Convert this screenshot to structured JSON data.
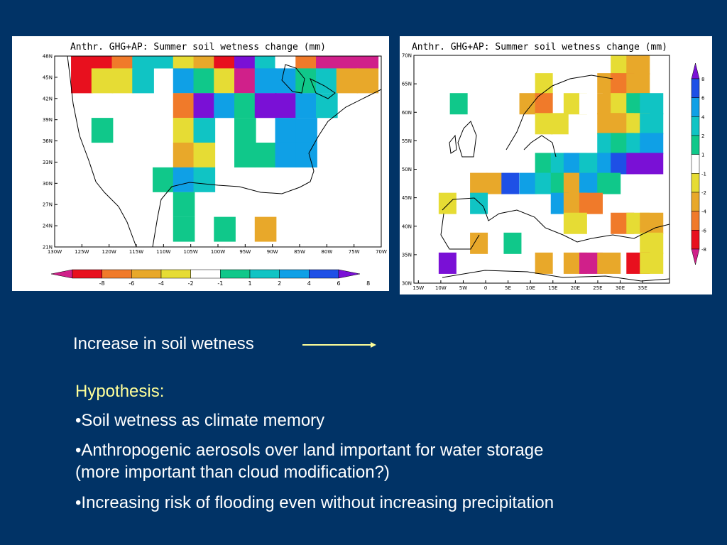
{
  "colors": {
    "background": "#013366",
    "text": "#ffffff",
    "accent": "#ffff99",
    "bins": {
      "lt-8": "#d0208a",
      "m8_m6": "#e8101e",
      "m6_m4": "#f07a2a",
      "m4_m2": "#e8a82a",
      "m2_m1": "#e6dc34",
      "m1_1": "#ffffff",
      "1_2": "#10c88a",
      "2_4": "#10c4c4",
      "4_6": "#0fa0e6",
      "6_8": "#1e50e6",
      "gt8": "#7a10d6"
    }
  },
  "maps": [
    {
      "id": "us",
      "title": "Anthr. GHG+AP: Summer soil wetness change (mm)",
      "lon_ticks": [
        "130W",
        "125W",
        "120W",
        "115W",
        "110W",
        "105W",
        "100W",
        "95W",
        "90W",
        "85W",
        "80W",
        "75W",
        "70W"
      ],
      "lat_ticks": [
        "21N",
        "24N",
        "27N",
        "30N",
        "33N",
        "36N",
        "39N",
        "42N",
        "45N",
        "48N"
      ],
      "lon_range": [
        -130,
        -70
      ],
      "lat_range": [
        21,
        48
      ],
      "colorbar": {
        "orientation": "horizontal",
        "labels": [
          "-8",
          "-6",
          "-4",
          "-2",
          "-1",
          "1",
          "2",
          "4",
          "6",
          "8"
        ]
      },
      "cells": [
        {
          "lon": -125,
          "lat": 48,
          "bin": "m8_m6"
        },
        {
          "lon": -121.25,
          "lat": 48,
          "bin": "m8_m6"
        },
        {
          "lon": -117.5,
          "lat": 48,
          "bin": "m6_m4"
        },
        {
          "lon": -113.75,
          "lat": 48,
          "bin": "2_4"
        },
        {
          "lon": -110,
          "lat": 48,
          "bin": "2_4"
        },
        {
          "lon": -106.25,
          "lat": 48,
          "bin": "m2_m1"
        },
        {
          "lon": -102.5,
          "lat": 48,
          "bin": "m4_m2"
        },
        {
          "lon": -98.75,
          "lat": 48,
          "bin": "m8_m6"
        },
        {
          "lon": -95,
          "lat": 48,
          "bin": "gt8"
        },
        {
          "lon": -91.25,
          "lat": 48,
          "bin": "2_4"
        },
        {
          "lon": -87.5,
          "lat": 48,
          "bin": "m1_1"
        },
        {
          "lon": -83.75,
          "lat": 48,
          "bin": "m6_m4"
        },
        {
          "lon": -80,
          "lat": 48,
          "bin": "lt-8"
        },
        {
          "lon": -76.25,
          "lat": 48,
          "bin": "lt-8"
        },
        {
          "lon": -72.5,
          "lat": 48,
          "bin": "lt-8"
        },
        {
          "lon": -125,
          "lat": 44.5,
          "bin": "m8_m6"
        },
        {
          "lon": -121.25,
          "lat": 44.5,
          "bin": "m2_m1"
        },
        {
          "lon": -117.5,
          "lat": 44.5,
          "bin": "m2_m1"
        },
        {
          "lon": -113.75,
          "lat": 44.5,
          "bin": "2_4"
        },
        {
          "lon": -106.25,
          "lat": 44.5,
          "bin": "4_6"
        },
        {
          "lon": -102.5,
          "lat": 44.5,
          "bin": "1_2"
        },
        {
          "lon": -98.75,
          "lat": 44.5,
          "bin": "m2_m1"
        },
        {
          "lon": -95,
          "lat": 44.5,
          "bin": "lt-8"
        },
        {
          "lon": -91.25,
          "lat": 44.5,
          "bin": "4_6"
        },
        {
          "lon": -87.5,
          "lat": 44.5,
          "bin": "4_6"
        },
        {
          "lon": -83.75,
          "lat": 44.5,
          "bin": "1_2"
        },
        {
          "lon": -80,
          "lat": 44.5,
          "bin": "2_4"
        },
        {
          "lon": -76.25,
          "lat": 44.5,
          "bin": "m4_m2"
        },
        {
          "lon": -72.5,
          "lat": 44.5,
          "bin": "m4_m2"
        },
        {
          "lon": -106.25,
          "lat": 41,
          "bin": "m6_m4"
        },
        {
          "lon": -102.5,
          "lat": 41,
          "bin": "gt8"
        },
        {
          "lon": -98.75,
          "lat": 41,
          "bin": "4_6"
        },
        {
          "lon": -95,
          "lat": 41,
          "bin": "1_2"
        },
        {
          "lon": -91.25,
          "lat": 41,
          "bin": "gt8"
        },
        {
          "lon": -87.5,
          "lat": 41,
          "bin": "gt8"
        },
        {
          "lon": -83.75,
          "lat": 41,
          "bin": "4_6"
        },
        {
          "lon": -80,
          "lat": 41,
          "bin": "2_4"
        },
        {
          "lon": -121.25,
          "lat": 37.5,
          "bin": "1_2"
        },
        {
          "lon": -106.25,
          "lat": 37.5,
          "bin": "m2_m1"
        },
        {
          "lon": -102.5,
          "lat": 37.5,
          "bin": "2_4"
        },
        {
          "lon": -95,
          "lat": 37.5,
          "bin": "1_2"
        },
        {
          "lon": -87.5,
          "lat": 37.5,
          "bin": "4_6"
        },
        {
          "lon": -83.75,
          "lat": 37.5,
          "bin": "4_6"
        },
        {
          "lon": -106.25,
          "lat": 34,
          "bin": "m4_m2"
        },
        {
          "lon": -102.5,
          "lat": 34,
          "bin": "m2_m1"
        },
        {
          "lon": -95,
          "lat": 34,
          "bin": "1_2"
        },
        {
          "lon": -91.25,
          "lat": 34,
          "bin": "1_2"
        },
        {
          "lon": -87.5,
          "lat": 34,
          "bin": "4_6"
        },
        {
          "lon": -83.75,
          "lat": 34,
          "bin": "4_6"
        },
        {
          "lon": -110,
          "lat": 30.5,
          "bin": "1_2"
        },
        {
          "lon": -106.25,
          "lat": 30.5,
          "bin": "4_6"
        },
        {
          "lon": -102.5,
          "lat": 30.5,
          "bin": "2_4"
        },
        {
          "lon": -106.25,
          "lat": 27,
          "bin": "1_2"
        },
        {
          "lon": -106.25,
          "lat": 23.5,
          "bin": "1_2"
        },
        {
          "lon": -98.75,
          "lat": 23.5,
          "bin": "1_2"
        },
        {
          "lon": -91.25,
          "lat": 23.5,
          "bin": "m4_m2"
        }
      ]
    },
    {
      "id": "eu",
      "title": "Anthr. GHG+AP: Summer soil wetness change (mm)",
      "lon_ticks": [
        "15W",
        "10W",
        "5W",
        "0",
        "5E",
        "10E",
        "15E",
        "20E",
        "25E",
        "30E",
        "35E"
      ],
      "lat_ticks": [
        "30N",
        "35N",
        "40N",
        "45N",
        "50N",
        "55N",
        "60N",
        "65N",
        "70N"
      ],
      "lon_range": [
        -16,
        41
      ],
      "lat_range": [
        30,
        70
      ],
      "colorbar": {
        "orientation": "vertical",
        "labels": [
          "8",
          "6",
          "4",
          "2",
          "1",
          "-1",
          "-2",
          "-4",
          "-6",
          "-8"
        ]
      },
      "cells": [
        {
          "lon": 30.5,
          "lat": 68.5,
          "bin": "m2_m1"
        },
        {
          "lon": 34,
          "lat": 68.5,
          "bin": "m4_m2"
        },
        {
          "lon": 13,
          "lat": 65,
          "bin": "m2_m1"
        },
        {
          "lon": 27.5,
          "lat": 65,
          "bin": "m4_m2"
        },
        {
          "lon": 30.5,
          "lat": 65,
          "bin": "m6_m4"
        },
        {
          "lon": 34,
          "lat": 65,
          "bin": "m4_m2"
        },
        {
          "lon": -6,
          "lat": 61.5,
          "bin": "1_2"
        },
        {
          "lon": 9.5,
          "lat": 61.5,
          "bin": "m4_m2"
        },
        {
          "lon": 13,
          "lat": 61.5,
          "bin": "m6_m4"
        },
        {
          "lon": 20,
          "lat": 61.5,
          "bin": "m2_m1"
        },
        {
          "lon": 23.5,
          "lat": 61.5,
          "bin": "m1_1"
        },
        {
          "lon": 27.5,
          "lat": 61.5,
          "bin": "m4_m2"
        },
        {
          "lon": 30.5,
          "lat": 61.5,
          "bin": "m2_m1"
        },
        {
          "lon": 34,
          "lat": 61.5,
          "bin": "1_2"
        },
        {
          "lon": 37,
          "lat": 61.5,
          "bin": "2_4"
        },
        {
          "lon": 13,
          "lat": 58,
          "bin": "m2_m1"
        },
        {
          "lon": 16.5,
          "lat": 58,
          "bin": "m2_m1"
        },
        {
          "lon": 27.5,
          "lat": 58,
          "bin": "m4_m2"
        },
        {
          "lon": 30.5,
          "lat": 58,
          "bin": "m4_m2"
        },
        {
          "lon": 34,
          "lat": 58,
          "bin": "m2_m1"
        },
        {
          "lon": 37,
          "lat": 58,
          "bin": "2_4"
        },
        {
          "lon": 27.5,
          "lat": 54.5,
          "bin": "2_4"
        },
        {
          "lon": 30.5,
          "lat": 54.5,
          "bin": "1_2"
        },
        {
          "lon": 34,
          "lat": 54.5,
          "bin": "2_4"
        },
        {
          "lon": 37,
          "lat": 54.5,
          "bin": "4_6"
        },
        {
          "lon": 13,
          "lat": 51,
          "bin": "1_2"
        },
        {
          "lon": 16.5,
          "lat": 51,
          "bin": "2_4"
        },
        {
          "lon": 20,
          "lat": 51,
          "bin": "4_6"
        },
        {
          "lon": 23.5,
          "lat": 51,
          "bin": "2_4"
        },
        {
          "lon": 27.5,
          "lat": 51,
          "bin": "4_6"
        },
        {
          "lon": 30.5,
          "lat": 51,
          "bin": "6_8"
        },
        {
          "lon": 34,
          "lat": 51,
          "bin": "gt8"
        },
        {
          "lon": 37,
          "lat": 51,
          "bin": "gt8"
        },
        {
          "lon": -1.5,
          "lat": 47.5,
          "bin": "m4_m2"
        },
        {
          "lon": 2,
          "lat": 47.5,
          "bin": "m4_m2"
        },
        {
          "lon": 5.5,
          "lat": 47.5,
          "bin": "6_8"
        },
        {
          "lon": 9.5,
          "lat": 47.5,
          "bin": "4_6"
        },
        {
          "lon": 13,
          "lat": 47.5,
          "bin": "2_4"
        },
        {
          "lon": 16.5,
          "lat": 47.5,
          "bin": "1_2"
        },
        {
          "lon": 20,
          "lat": 47.5,
          "bin": "m4_m2"
        },
        {
          "lon": 23.5,
          "lat": 47.5,
          "bin": "4_6"
        },
        {
          "lon": 27.5,
          "lat": 47.5,
          "bin": "1_2"
        },
        {
          "lon": -8.5,
          "lat": 44,
          "bin": "m2_m1"
        },
        {
          "lon": -1.5,
          "lat": 44,
          "bin": "2_4"
        },
        {
          "lon": 16.5,
          "lat": 44,
          "bin": "4_6"
        },
        {
          "lon": 20,
          "lat": 44,
          "bin": "m4_m2"
        },
        {
          "lon": 23.5,
          "lat": 44,
          "bin": "m6_m4"
        },
        {
          "lon": 20,
          "lat": 40.5,
          "bin": "m2_m1"
        },
        {
          "lon": 30.5,
          "lat": 40.5,
          "bin": "m6_m4"
        },
        {
          "lon": 34,
          "lat": 40.5,
          "bin": "m2_m1"
        },
        {
          "lon": 37,
          "lat": 40.5,
          "bin": "m4_m2"
        },
        {
          "lon": -1.5,
          "lat": 37,
          "bin": "m4_m2"
        },
        {
          "lon": 6,
          "lat": 37,
          "bin": "1_2"
        },
        {
          "lon": 37,
          "lat": 37,
          "bin": "m2_m1"
        },
        {
          "lon": -8.5,
          "lat": 33.5,
          "bin": "gt8"
        },
        {
          "lon": 13,
          "lat": 33.5,
          "bin": "m4_m2"
        },
        {
          "lon": 20,
          "lat": 33.5,
          "bin": "m4_m2"
        },
        {
          "lon": 23.5,
          "lat": 33.5,
          "bin": "lt-8"
        },
        {
          "lon": 27.5,
          "lat": 33.5,
          "bin": "m4_m2"
        },
        {
          "lon": 34,
          "lat": 33.5,
          "bin": "m8_m6"
        },
        {
          "lon": 37,
          "lat": 33.5,
          "bin": "m2_m1"
        }
      ]
    }
  ],
  "caption": {
    "text": "Increase in soil wetness",
    "arrow_color": "#ffff99"
  },
  "hypothesis": {
    "title": "Hypothesis:",
    "bullets": [
      "•Soil wetness as climate memory",
      "•Anthropogenic aerosols over land important for water storage",
      "(more important than cloud modification?)",
      "•Increasing risk of flooding even without increasing precipitation"
    ]
  }
}
